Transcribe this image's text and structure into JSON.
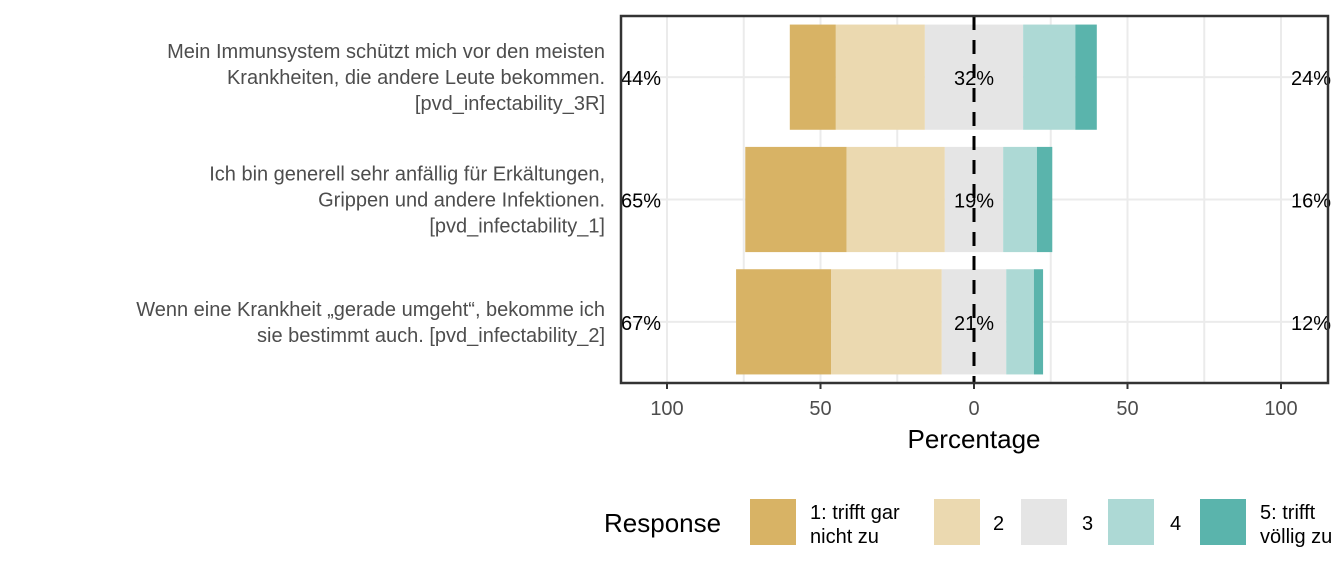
{
  "chart_data": {
    "type": "bar",
    "orientation": "horizontal",
    "stacked": "diverging",
    "title": "",
    "xlabel": "Percentage",
    "ylabel": "",
    "xlim": [
      -100,
      100
    ],
    "x_ticks": [
      -100,
      -50,
      0,
      50,
      100
    ],
    "x_tick_labels": [
      "100",
      "50",
      "0",
      "50",
      "100"
    ],
    "grid": true,
    "legend": {
      "title": "Response",
      "position": "bottom",
      "entries": [
        {
          "label": "1: trifft gar nicht zu",
          "lines": [
            "1: trifft gar",
            "nicht zu"
          ],
          "color": "#D8B365"
        },
        {
          "label": "2",
          "lines": [
            "2"
          ],
          "color": "#EBD9B0"
        },
        {
          "label": "3",
          "lines": [
            "3"
          ],
          "color": "#E5E5E5"
        },
        {
          "label": "4",
          "lines": [
            "4"
          ],
          "color": "#ADD9D5"
        },
        {
          "label": "5: trifft völlig zu",
          "lines": [
            "5: trifft",
            "völlig zu"
          ],
          "color": "#5AB4AC"
        }
      ]
    },
    "categories": [
      {
        "label": "Mein Immunsystem schützt mich vor den meisten Krankheiten, die andere Leute bekommen. [pvd_infectability_3R]",
        "lines": [
          "Mein Immunsystem schützt mich vor den meisten",
          "Krankheiten, die andere Leute bekommen.",
          "[pvd_infectability_3R]"
        ],
        "values": [
          15,
          29,
          32,
          17,
          7
        ],
        "low_label": "44%",
        "mid_label": "32%",
        "high_label": "24%"
      },
      {
        "label": "Ich bin generell sehr anfällig für Erkältungen, Grippen und andere Infektionen. [pvd_infectability_1]",
        "lines": [
          "Ich bin generell sehr anfällig für Erkältungen,",
          "Grippen und andere Infektionen.",
          "[pvd_infectability_1]"
        ],
        "values": [
          33,
          32,
          19,
          11,
          5
        ],
        "low_label": "65%",
        "mid_label": "19%",
        "high_label": "16%"
      },
      {
        "label": "Wenn eine Krankheit „gerade umgeht“, bekomme ich sie bestimmt auch. [pvd_infectability_2]",
        "lines": [
          "Wenn eine Krankheit „gerade umgeht“, bekomme ich",
          "sie bestimmt auch. [pvd_infectability_2]"
        ],
        "values": [
          31,
          36,
          21,
          9,
          3
        ],
        "low_label": "67%",
        "mid_label": "21%",
        "high_label": "12%"
      }
    ]
  }
}
